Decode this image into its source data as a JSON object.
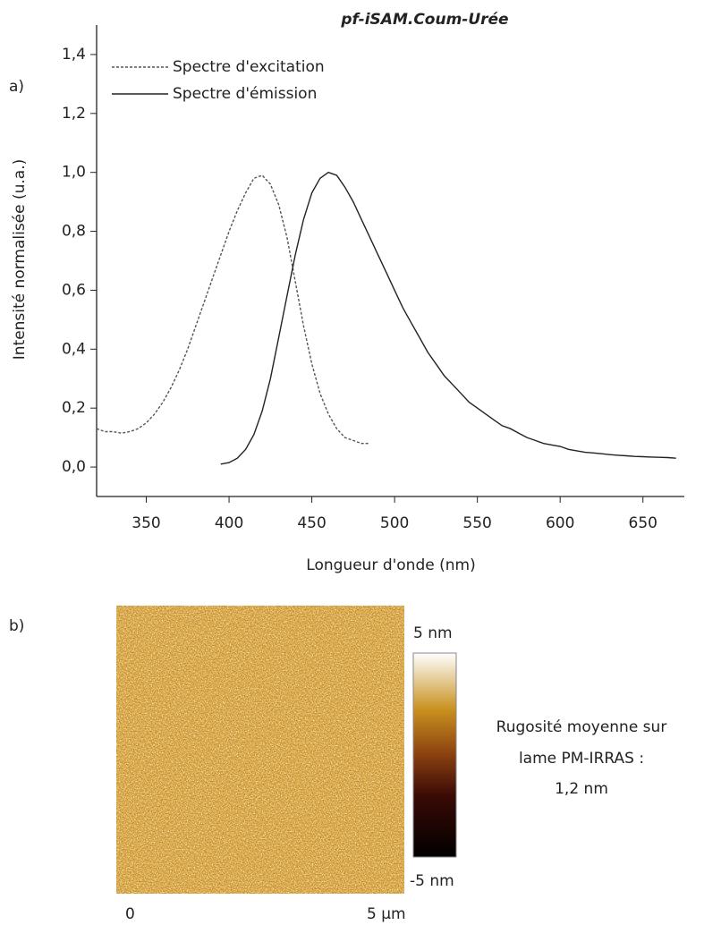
{
  "chart_data": {
    "type": "line",
    "title": "pf-iSAM.Coum-Urée",
    "x_label": "Longueur d'onde (nm)",
    "y_label": "Intensité normalisée (u.a.)",
    "xlim": [
      320,
      675
    ],
    "ylim": [
      -0.1,
      1.5
    ],
    "xticks": [
      350,
      400,
      450,
      500,
      550,
      600,
      650
    ],
    "yticks": [
      {
        "value": 0,
        "label": "0,0"
      },
      {
        "value": 0.2,
        "label": "0,2"
      },
      {
        "value": 0.4,
        "label": "0,4"
      },
      {
        "value": 0.6,
        "label": "0,6"
      },
      {
        "value": 0.8,
        "label": "0,8"
      },
      {
        "value": 1.0,
        "label": "1,0"
      },
      {
        "value": 1.2,
        "label": "1,2"
      },
      {
        "value": 1.4,
        "label": "1,4"
      }
    ],
    "legend": "upper-left",
    "series": [
      {
        "name": "Spectre d'excitation",
        "color": "#555555",
        "line_style": "dotted",
        "x": [
          320,
          325,
          330,
          335,
          340,
          345,
          350,
          355,
          360,
          365,
          370,
          375,
          380,
          385,
          390,
          395,
          400,
          405,
          410,
          415,
          420,
          425,
          430,
          435,
          440,
          445,
          450,
          455,
          460,
          465,
          470,
          475,
          480,
          485
        ],
        "values": [
          0.13,
          0.12,
          0.12,
          0.115,
          0.12,
          0.13,
          0.15,
          0.18,
          0.22,
          0.27,
          0.33,
          0.4,
          0.48,
          0.56,
          0.64,
          0.72,
          0.8,
          0.87,
          0.93,
          0.98,
          0.99,
          0.96,
          0.89,
          0.78,
          0.63,
          0.48,
          0.35,
          0.25,
          0.18,
          0.13,
          0.1,
          0.09,
          0.08,
          0.08
        ]
      },
      {
        "name": "Spectre d'émission",
        "color": "#222222",
        "line_style": "solid",
        "x": [
          395,
          400,
          405,
          410,
          415,
          420,
          425,
          430,
          435,
          440,
          445,
          450,
          455,
          460,
          465,
          470,
          475,
          480,
          485,
          490,
          495,
          500,
          505,
          510,
          515,
          520,
          525,
          530,
          535,
          540,
          545,
          550,
          555,
          560,
          565,
          570,
          575,
          580,
          585,
          590,
          595,
          600,
          605,
          610,
          615,
          620,
          625,
          630,
          635,
          640,
          645,
          650,
          655,
          660,
          665,
          670
        ],
        "values": [
          0.01,
          0.015,
          0.03,
          0.06,
          0.11,
          0.19,
          0.3,
          0.44,
          0.58,
          0.72,
          0.84,
          0.93,
          0.98,
          1.0,
          0.99,
          0.95,
          0.9,
          0.84,
          0.78,
          0.72,
          0.66,
          0.6,
          0.54,
          0.49,
          0.44,
          0.39,
          0.35,
          0.31,
          0.28,
          0.25,
          0.22,
          0.2,
          0.18,
          0.16,
          0.14,
          0.13,
          0.115,
          0.1,
          0.09,
          0.08,
          0.075,
          0.07,
          0.06,
          0.055,
          0.05,
          0.048,
          0.045,
          0.042,
          0.04,
          0.038,
          0.036,
          0.035,
          0.034,
          0.033,
          0.032,
          0.03
        ]
      }
    ]
  },
  "panel_labels": [
    "a)",
    "b)"
  ],
  "afm": {
    "scale_max": "5 nm",
    "scale_min": "-5 nm",
    "x_start": "0",
    "x_end": "5 µm",
    "note": [
      "Rugosité moyenne sur",
      "lame PM-IRRAS :",
      "1,2 nm"
    ]
  }
}
